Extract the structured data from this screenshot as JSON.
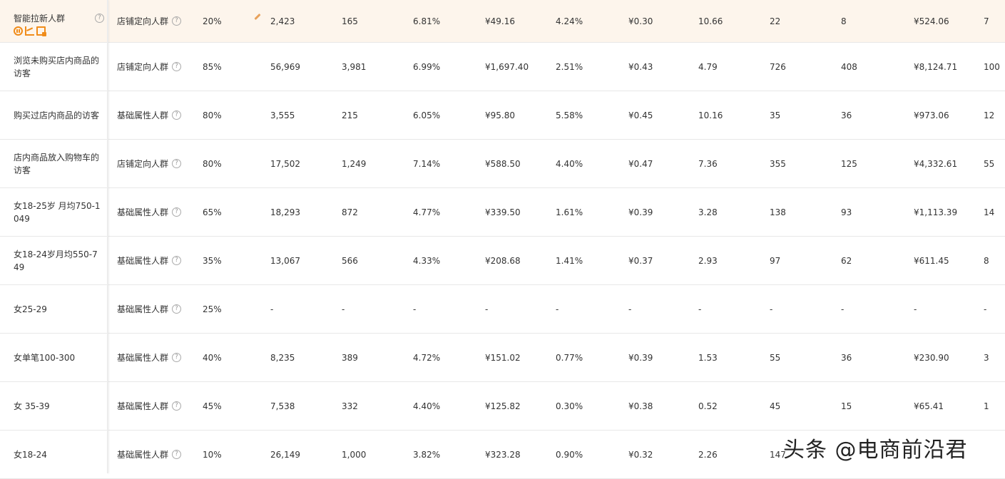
{
  "rows": [
    {
      "name": "智能拉新人群",
      "type": "店铺定向人群",
      "premium": "20%",
      "c1": "2,423",
      "c2": "165",
      "c3": "6.81%",
      "c4": "¥49.16",
      "c5": "4.24%",
      "c6": "¥0.30",
      "c7": "10.66",
      "c8": "22",
      "c9": "8",
      "c10": "¥524.06",
      "c11": "7"
    },
    {
      "name": "浏览未购买店内商品的访客",
      "type": "店铺定向人群",
      "premium": "85%",
      "c1": "56,969",
      "c2": "3,981",
      "c3": "6.99%",
      "c4": "¥1,697.40",
      "c5": "2.51%",
      "c6": "¥0.43",
      "c7": "4.79",
      "c8": "726",
      "c9": "408",
      "c10": "¥8,124.71",
      "c11": "100"
    },
    {
      "name": "购买过店内商品的访客",
      "type": "基础属性人群",
      "premium": "80%",
      "c1": "3,555",
      "c2": "215",
      "c3": "6.05%",
      "c4": "¥95.80",
      "c5": "5.58%",
      "c6": "¥0.45",
      "c7": "10.16",
      "c8": "35",
      "c9": "36",
      "c10": "¥973.06",
      "c11": "12"
    },
    {
      "name": "店内商品放入购物车的访客",
      "type": "店铺定向人群",
      "premium": "80%",
      "c1": "17,502",
      "c2": "1,249",
      "c3": "7.14%",
      "c4": "¥588.50",
      "c5": "4.40%",
      "c6": "¥0.47",
      "c7": "7.36",
      "c8": "355",
      "c9": "125",
      "c10": "¥4,332.61",
      "c11": "55"
    },
    {
      "name": "女18-25岁 月均750-1049",
      "type": "基础属性人群",
      "premium": "65%",
      "c1": "18,293",
      "c2": "872",
      "c3": "4.77%",
      "c4": "¥339.50",
      "c5": "1.61%",
      "c6": "¥0.39",
      "c7": "3.28",
      "c8": "138",
      "c9": "93",
      "c10": "¥1,113.39",
      "c11": "14"
    },
    {
      "name": "女18-24岁月均550-749",
      "type": "基础属性人群",
      "premium": "35%",
      "c1": "13,067",
      "c2": "566",
      "c3": "4.33%",
      "c4": "¥208.68",
      "c5": "1.41%",
      "c6": "¥0.37",
      "c7": "2.93",
      "c8": "97",
      "c9": "62",
      "c10": "¥611.45",
      "c11": "8"
    },
    {
      "name": "女25-29",
      "type": "基础属性人群",
      "premium": "25%",
      "c1": "-",
      "c2": "-",
      "c3": "-",
      "c4": "-",
      "c5": "-",
      "c6": "-",
      "c7": "-",
      "c8": "-",
      "c9": "-",
      "c10": "-",
      "c11": "-"
    },
    {
      "name": "女单笔100-300",
      "type": "基础属性人群",
      "premium": "40%",
      "c1": "8,235",
      "c2": "389",
      "c3": "4.72%",
      "c4": "¥151.02",
      "c5": "0.77%",
      "c6": "¥0.39",
      "c7": "1.53",
      "c8": "55",
      "c9": "36",
      "c10": "¥230.90",
      "c11": "3"
    },
    {
      "name": "女 35-39",
      "type": "基础属性人群",
      "premium": "45%",
      "c1": "7,538",
      "c2": "332",
      "c3": "4.40%",
      "c4": "¥125.82",
      "c5": "0.30%",
      "c6": "¥0.38",
      "c7": "0.52",
      "c8": "45",
      "c9": "15",
      "c10": "¥65.41",
      "c11": "1"
    },
    {
      "name": "女18-24",
      "type": "基础属性人群",
      "premium": "10%",
      "c1": "26,149",
      "c2": "1,000",
      "c3": "3.82%",
      "c4": "¥323.28",
      "c5": "0.90%",
      "c6": "¥0.32",
      "c7": "2.26",
      "c8": "147",
      "c9": "",
      "c10": "",
      "c11": ""
    }
  ],
  "help_glyph": "?",
  "watermark": "头条 @电商前沿君"
}
